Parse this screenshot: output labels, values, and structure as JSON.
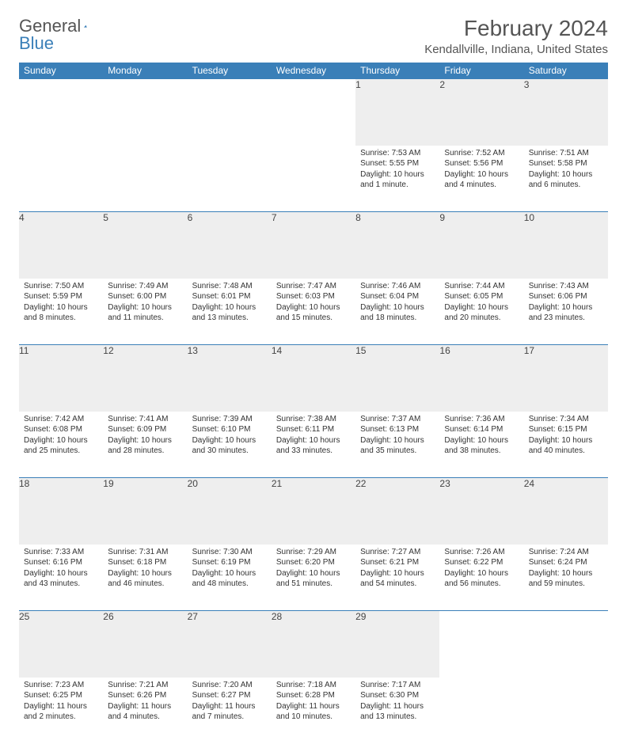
{
  "logo": {
    "text1": "General",
    "text2": "Blue"
  },
  "title": "February 2024",
  "location": "Kendallville, Indiana, United States",
  "colors": {
    "header_bg": "#3a7fb8",
    "header_text": "#ffffff",
    "daynum_bg": "#eeeeee",
    "border": "#3a7fb8",
    "text": "#333333",
    "title_text": "#555555"
  },
  "day_headers": [
    "Sunday",
    "Monday",
    "Tuesday",
    "Wednesday",
    "Thursday",
    "Friday",
    "Saturday"
  ],
  "weeks": [
    [
      null,
      null,
      null,
      null,
      {
        "n": "1",
        "sunrise": "7:53 AM",
        "sunset": "5:55 PM",
        "daylight": "10 hours and 1 minute."
      },
      {
        "n": "2",
        "sunrise": "7:52 AM",
        "sunset": "5:56 PM",
        "daylight": "10 hours and 4 minutes."
      },
      {
        "n": "3",
        "sunrise": "7:51 AM",
        "sunset": "5:58 PM",
        "daylight": "10 hours and 6 minutes."
      }
    ],
    [
      {
        "n": "4",
        "sunrise": "7:50 AM",
        "sunset": "5:59 PM",
        "daylight": "10 hours and 8 minutes."
      },
      {
        "n": "5",
        "sunrise": "7:49 AM",
        "sunset": "6:00 PM",
        "daylight": "10 hours and 11 minutes."
      },
      {
        "n": "6",
        "sunrise": "7:48 AM",
        "sunset": "6:01 PM",
        "daylight": "10 hours and 13 minutes."
      },
      {
        "n": "7",
        "sunrise": "7:47 AM",
        "sunset": "6:03 PM",
        "daylight": "10 hours and 15 minutes."
      },
      {
        "n": "8",
        "sunrise": "7:46 AM",
        "sunset": "6:04 PM",
        "daylight": "10 hours and 18 minutes."
      },
      {
        "n": "9",
        "sunrise": "7:44 AM",
        "sunset": "6:05 PM",
        "daylight": "10 hours and 20 minutes."
      },
      {
        "n": "10",
        "sunrise": "7:43 AM",
        "sunset": "6:06 PM",
        "daylight": "10 hours and 23 minutes."
      }
    ],
    [
      {
        "n": "11",
        "sunrise": "7:42 AM",
        "sunset": "6:08 PM",
        "daylight": "10 hours and 25 minutes."
      },
      {
        "n": "12",
        "sunrise": "7:41 AM",
        "sunset": "6:09 PM",
        "daylight": "10 hours and 28 minutes."
      },
      {
        "n": "13",
        "sunrise": "7:39 AM",
        "sunset": "6:10 PM",
        "daylight": "10 hours and 30 minutes."
      },
      {
        "n": "14",
        "sunrise": "7:38 AM",
        "sunset": "6:11 PM",
        "daylight": "10 hours and 33 minutes."
      },
      {
        "n": "15",
        "sunrise": "7:37 AM",
        "sunset": "6:13 PM",
        "daylight": "10 hours and 35 minutes."
      },
      {
        "n": "16",
        "sunrise": "7:36 AM",
        "sunset": "6:14 PM",
        "daylight": "10 hours and 38 minutes."
      },
      {
        "n": "17",
        "sunrise": "7:34 AM",
        "sunset": "6:15 PM",
        "daylight": "10 hours and 40 minutes."
      }
    ],
    [
      {
        "n": "18",
        "sunrise": "7:33 AM",
        "sunset": "6:16 PM",
        "daylight": "10 hours and 43 minutes."
      },
      {
        "n": "19",
        "sunrise": "7:31 AM",
        "sunset": "6:18 PM",
        "daylight": "10 hours and 46 minutes."
      },
      {
        "n": "20",
        "sunrise": "7:30 AM",
        "sunset": "6:19 PM",
        "daylight": "10 hours and 48 minutes."
      },
      {
        "n": "21",
        "sunrise": "7:29 AM",
        "sunset": "6:20 PM",
        "daylight": "10 hours and 51 minutes."
      },
      {
        "n": "22",
        "sunrise": "7:27 AM",
        "sunset": "6:21 PM",
        "daylight": "10 hours and 54 minutes."
      },
      {
        "n": "23",
        "sunrise": "7:26 AM",
        "sunset": "6:22 PM",
        "daylight": "10 hours and 56 minutes."
      },
      {
        "n": "24",
        "sunrise": "7:24 AM",
        "sunset": "6:24 PM",
        "daylight": "10 hours and 59 minutes."
      }
    ],
    [
      {
        "n": "25",
        "sunrise": "7:23 AM",
        "sunset": "6:25 PM",
        "daylight": "11 hours and 2 minutes."
      },
      {
        "n": "26",
        "sunrise": "7:21 AM",
        "sunset": "6:26 PM",
        "daylight": "11 hours and 4 minutes."
      },
      {
        "n": "27",
        "sunrise": "7:20 AM",
        "sunset": "6:27 PM",
        "daylight": "11 hours and 7 minutes."
      },
      {
        "n": "28",
        "sunrise": "7:18 AM",
        "sunset": "6:28 PM",
        "daylight": "11 hours and 10 minutes."
      },
      {
        "n": "29",
        "sunrise": "7:17 AM",
        "sunset": "6:30 PM",
        "daylight": "11 hours and 13 minutes."
      },
      null,
      null
    ]
  ],
  "labels": {
    "sunrise": "Sunrise:",
    "sunset": "Sunset:",
    "daylight": "Daylight:"
  }
}
